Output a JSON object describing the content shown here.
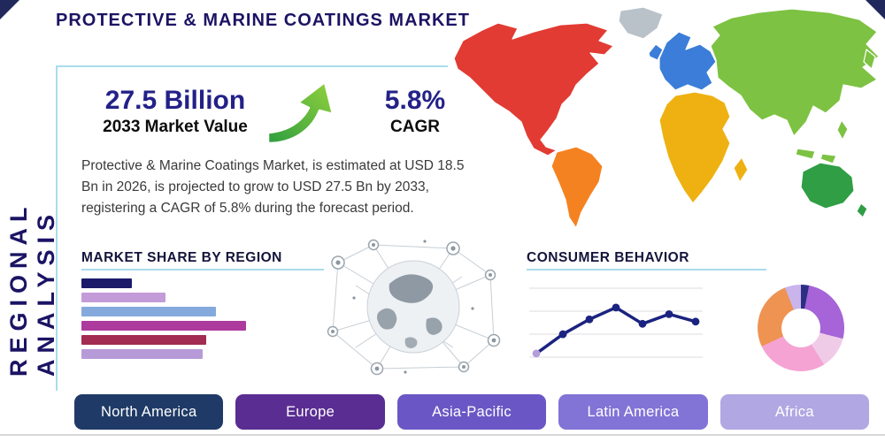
{
  "title": "PROTECTIVE & MARINE COATINGS MARKET",
  "side_label": "REGIONAL ANALYSIS",
  "stats": {
    "market_value": "27.5 Billion",
    "market_value_label": "2033 Market Value",
    "cagr_value": "5.8%",
    "cagr_label": "CAGR"
  },
  "description": "Protective & Marine Coatings Market, is estimated at USD 18.5 Bn in 2026, is projected to grow to USD 27.5 Bn by 2033, registering a CAGR of 5.8% during the forecast period.",
  "sections": {
    "market_share_title": "MARKET SHARE BY REGION",
    "consumer_behavior_title": "CONSUMER BEHAVIOR"
  },
  "buttons": [
    {
      "label": "North America",
      "color": "#1f3a66"
    },
    {
      "label": "Europe",
      "color": "#5a2d92"
    },
    {
      "label": "Asia-Pacific",
      "color": "#6a57c5"
    },
    {
      "label": "Latin America",
      "color": "#8273d6"
    },
    {
      "label": "Africa",
      "color": "#b1a7e2"
    }
  ],
  "chart_data": [
    {
      "type": "bar",
      "title": "MARKET SHARE BY REGION",
      "orientation": "horizontal",
      "categories": [
        "bar-1",
        "bar-2",
        "bar-3",
        "bar-4",
        "bar-5",
        "bar-6"
      ],
      "values": [
        30,
        50,
        80,
        98,
        74,
        72
      ],
      "xlim": [
        0,
        100
      ],
      "value_note": "relative bar lengths; axis unlabeled in source",
      "colors": [
        "#1b1b6a",
        "#c39bd8",
        "#84aadd",
        "#ad3a9d",
        "#a22c52",
        "#b79bd8"
      ]
    },
    {
      "type": "line",
      "title": "CONSUMER BEHAVIOR",
      "x": [
        1,
        2,
        3,
        4,
        5,
        6,
        7
      ],
      "values": [
        12,
        38,
        58,
        74,
        52,
        65,
        55
      ],
      "ylim": [
        0,
        100
      ],
      "grid": true,
      "axis_labels_visible": false,
      "line_color": "#1b2380",
      "first_marker_color": "#b49ddb"
    },
    {
      "type": "pie",
      "style": "donut",
      "slices": [
        {
          "label": "navy",
          "value": 3,
          "color": "#2b2f84"
        },
        {
          "label": "purple",
          "value": 26,
          "color": "#a664d8"
        },
        {
          "label": "pale-pink",
          "value": 12,
          "color": "#f0cbe8"
        },
        {
          "label": "pink",
          "value": 27,
          "color": "#f4a3d3"
        },
        {
          "label": "orange",
          "value": 26,
          "color": "#ef9352"
        },
        {
          "label": "lavender",
          "value": 6,
          "color": "#c9b4ec"
        }
      ]
    }
  ],
  "map": {
    "regions": [
      {
        "name": "north-america",
        "color": "#e23b33"
      },
      {
        "name": "greenland",
        "color": "#b9c2c9"
      },
      {
        "name": "south-america",
        "color": "#f58220"
      },
      {
        "name": "europe",
        "color": "#3b7dd8"
      },
      {
        "name": "africa",
        "color": "#eeb111"
      },
      {
        "name": "asia",
        "color": "#7dc242"
      },
      {
        "name": "australia",
        "color": "#2f9e44"
      }
    ]
  },
  "accents": {
    "panel_border": "#aadcec",
    "bottom_rule": "#d8d8d8",
    "navy": "#1b1464",
    "arrow_green_dark": "#2e9e3f",
    "arrow_green_light": "#93d13e"
  }
}
